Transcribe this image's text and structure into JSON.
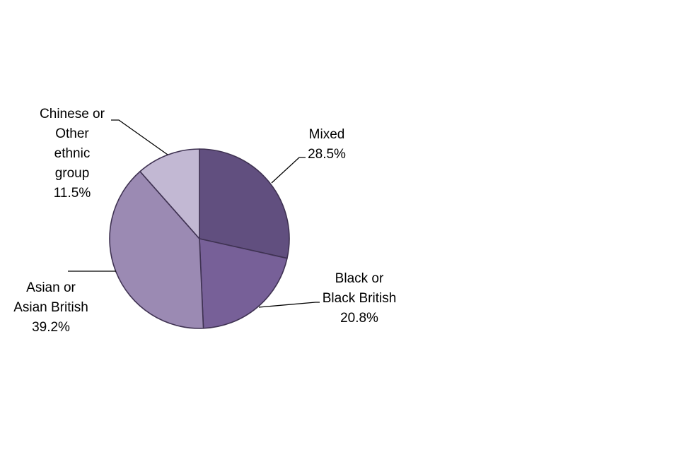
{
  "chart_data": {
    "type": "pie",
    "title": "",
    "slices": [
      {
        "name": "Mixed",
        "label_lines": [
          "Mixed",
          "28.5%"
        ],
        "value": 28.5,
        "color": "#614f7f"
      },
      {
        "name": "Black or Black British",
        "label_lines": [
          "Black or",
          "Black British",
          "20.8%"
        ],
        "value": 20.8,
        "color": "#776098"
      },
      {
        "name": "Asian or Asian British",
        "label_lines": [
          "Asian or",
          "Asian British",
          "39.2%"
        ],
        "value": 39.2,
        "color": "#9b8ab3"
      },
      {
        "name": "Chinese or Other ethnic group",
        "label_lines": [
          "Chinese or",
          "Other",
          "ethnic",
          "group",
          "11.5%"
        ],
        "value": 11.5,
        "color": "#c2b8d3"
      }
    ],
    "start_angle": "12 o'clock",
    "direction": "clockwise",
    "legend": "none",
    "data_labels": "outside with leader lines",
    "border_color": "#3f3252"
  }
}
